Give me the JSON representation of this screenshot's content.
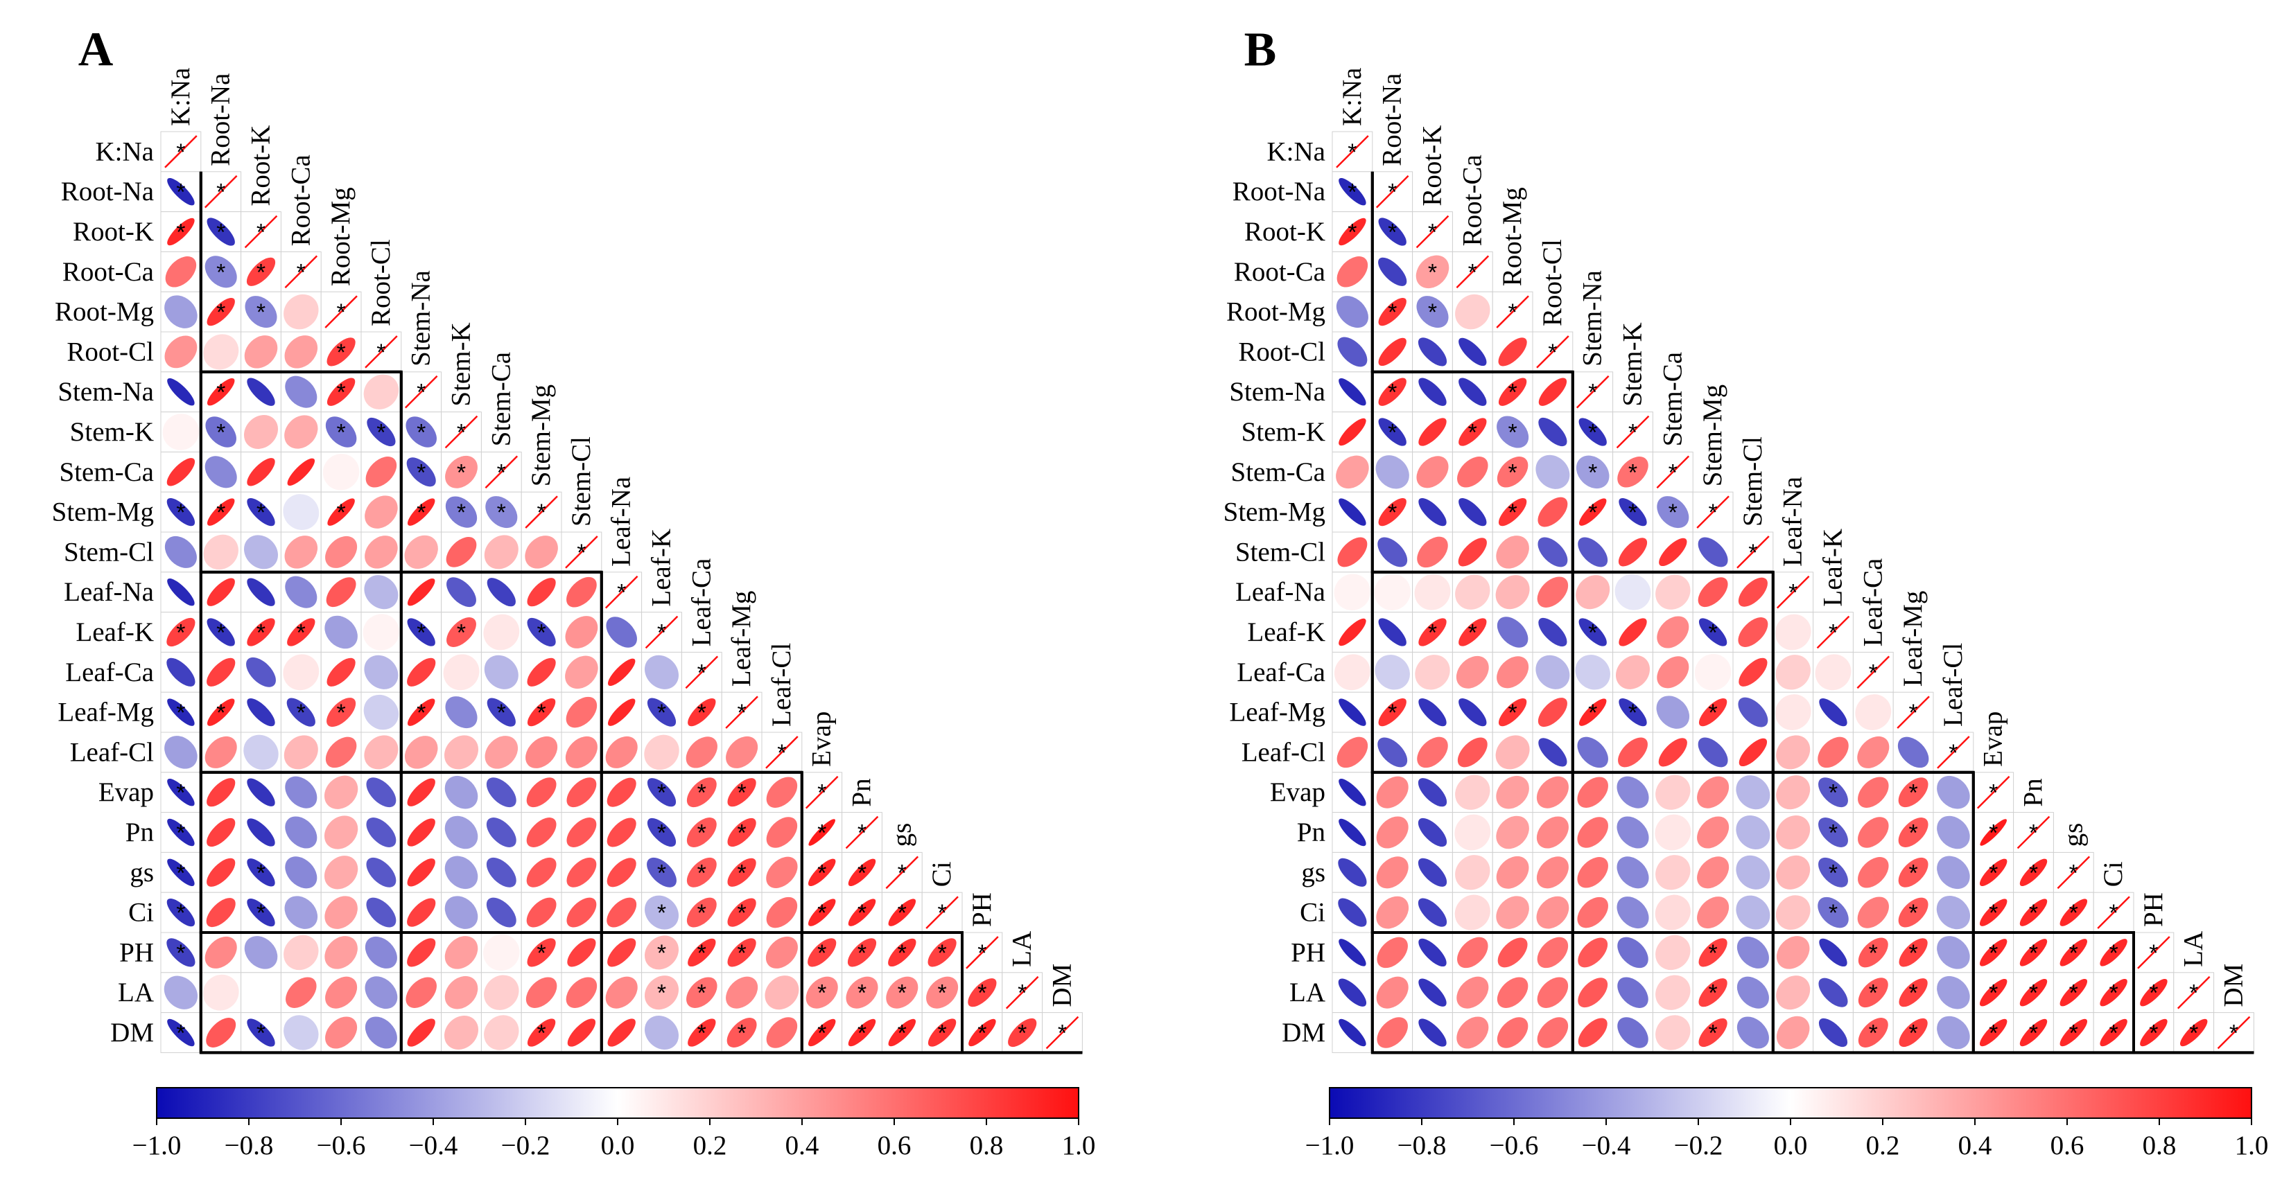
{
  "chart_data": [
    {
      "type": "heatmap",
      "panel": "A",
      "variables": [
        "K:Na",
        "Root-Na",
        "Root-K",
        "Root-Ca",
        "Root-Mg",
        "Root-Cl",
        "Stem-Na",
        "Stem-K",
        "Stem-Ca",
        "Stem-Mg",
        "Stem-Cl",
        "Leaf-Na",
        "Leaf-K",
        "Leaf-Ca",
        "Leaf-Mg",
        "Leaf-Cl",
        "Evap",
        "Pn",
        "gs",
        "Ci",
        "PH",
        "LA",
        "DM"
      ],
      "groups": [
        [
          1,
          5
        ],
        [
          6,
          10
        ],
        [
          11,
          15
        ],
        [
          16,
          19
        ],
        [
          20,
          22
        ]
      ],
      "colorbar": {
        "range": [
          -1.0,
          1.0
        ],
        "ticks": [
          "−1.0",
          "−0.8",
          "−0.6",
          "−0.4",
          "−0.2",
          "0.0",
          "0.2",
          "0.4",
          "0.6",
          "0.8",
          "1.0"
        ],
        "low_color": "#1010b0",
        "mid_color": "#ffffff",
        "high_color": "#ff1010"
      },
      "rows": [
        [
          1.0
        ],
        [
          -0.9,
          1.0
        ],
        [
          0.9,
          -0.85,
          1.0
        ],
        [
          0.6,
          -0.5,
          0.8,
          1.0
        ],
        [
          -0.4,
          0.85,
          -0.5,
          0.2,
          1.0
        ],
        [
          0.45,
          0.15,
          0.4,
          0.4,
          0.8,
          1.0
        ],
        [
          -0.9,
          0.9,
          -0.85,
          -0.5,
          0.85,
          0.2,
          1.0
        ],
        [
          0.05,
          -0.6,
          0.3,
          0.35,
          -0.6,
          -0.8,
          -0.6,
          1.0
        ],
        [
          0.85,
          -0.5,
          0.85,
          0.9,
          0.05,
          0.6,
          -0.75,
          0.45,
          1.0
        ],
        [
          -0.85,
          0.9,
          -0.85,
          -0.1,
          0.9,
          0.4,
          0.9,
          -0.55,
          -0.5,
          1.0
        ],
        [
          -0.5,
          0.2,
          -0.3,
          0.4,
          0.5,
          0.4,
          0.35,
          0.65,
          0.3,
          0.4,
          1.0
        ],
        [
          -0.9,
          0.85,
          -0.85,
          -0.5,
          0.7,
          -0.3,
          0.9,
          -0.7,
          -0.8,
          0.8,
          0.65,
          1.0
        ],
        [
          0.8,
          -0.85,
          0.85,
          0.85,
          -0.4,
          0.05,
          -0.85,
          0.7,
          0.1,
          -0.8,
          0.45,
          -0.6,
          1.0
        ],
        [
          -0.8,
          0.8,
          -0.7,
          0.1,
          0.8,
          -0.3,
          0.8,
          0.1,
          -0.3,
          0.8,
          0.4,
          0.9,
          -0.3,
          1.0
        ],
        [
          -0.9,
          0.9,
          -0.85,
          -0.8,
          0.75,
          -0.2,
          0.9,
          -0.5,
          -0.8,
          0.85,
          0.6,
          0.9,
          -0.8,
          0.85,
          1.0
        ],
        [
          -0.4,
          0.5,
          -0.2,
          0.3,
          0.6,
          0.3,
          0.4,
          0.3,
          0.4,
          0.5,
          0.5,
          0.5,
          0.2,
          0.55,
          0.5,
          1.0
        ],
        [
          -0.9,
          0.8,
          -0.85,
          -0.5,
          0.35,
          -0.7,
          0.85,
          -0.4,
          -0.7,
          0.7,
          0.7,
          0.75,
          -0.8,
          0.7,
          0.8,
          0.6,
          1.0
        ],
        [
          -0.9,
          0.8,
          -0.85,
          -0.5,
          0.35,
          -0.7,
          0.85,
          -0.4,
          -0.7,
          0.7,
          0.7,
          0.75,
          -0.8,
          0.7,
          0.8,
          0.6,
          0.95,
          1.0
        ],
        [
          -0.9,
          0.8,
          -0.85,
          -0.5,
          0.35,
          -0.7,
          0.85,
          -0.4,
          -0.7,
          0.7,
          0.7,
          0.75,
          -0.7,
          0.7,
          0.8,
          0.55,
          0.9,
          0.9,
          1.0
        ],
        [
          -0.85,
          0.75,
          -0.85,
          -0.4,
          0.4,
          -0.7,
          0.8,
          -0.4,
          -0.7,
          0.7,
          0.7,
          0.7,
          -0.3,
          0.7,
          0.8,
          0.6,
          0.9,
          0.9,
          0.9,
          1.0
        ],
        [
          -0.8,
          0.5,
          -0.4,
          0.2,
          0.4,
          -0.5,
          0.8,
          0.4,
          0.05,
          0.8,
          0.8,
          0.8,
          0.3,
          0.85,
          0.8,
          0.5,
          0.8,
          0.8,
          0.85,
          0.8,
          1.0
        ],
        [
          -0.35,
          0.1,
          0.0,
          0.6,
          0.5,
          -0.45,
          0.6,
          0.4,
          0.2,
          0.6,
          0.6,
          0.5,
          0.3,
          0.6,
          0.5,
          0.3,
          0.5,
          0.5,
          0.5,
          0.5,
          0.8,
          1.0
        ],
        [
          -0.9,
          0.7,
          -0.85,
          -0.2,
          0.5,
          -0.5,
          0.85,
          0.3,
          0.2,
          0.85,
          0.85,
          0.85,
          -0.3,
          0.85,
          0.7,
          0.6,
          0.9,
          0.9,
          0.9,
          0.85,
          0.9,
          0.8,
          1.0
        ]
      ],
      "significant": [
        [
          0
        ],
        [
          0,
          1
        ],
        [
          0,
          1,
          2
        ],
        [
          1,
          2,
          3
        ],
        [
          1,
          2,
          4
        ],
        [
          4,
          5
        ],
        [
          1,
          4,
          6
        ],
        [
          1,
          4,
          5,
          6,
          7
        ],
        [
          6,
          7,
          8
        ],
        [
          0,
          1,
          2,
          4,
          6,
          7,
          8,
          9
        ],
        [
          10
        ],
        [
          11
        ],
        [
          0,
          1,
          2,
          3,
          6,
          7,
          9,
          12
        ],
        [
          13
        ],
        [
          0,
          1,
          3,
          4,
          6,
          8,
          9,
          12,
          13,
          14
        ],
        [
          15
        ],
        [
          0,
          12,
          13,
          14,
          16
        ],
        [
          0,
          12,
          13,
          14,
          16,
          17
        ],
        [
          0,
          2,
          12,
          13,
          14,
          16,
          17,
          18
        ],
        [
          0,
          2,
          12,
          13,
          14,
          16,
          17,
          18,
          19
        ],
        [
          0,
          9,
          12,
          13,
          14,
          16,
          17,
          18,
          19,
          20
        ],
        [
          12,
          13,
          16,
          17,
          18,
          19,
          20,
          21
        ],
        [
          0,
          2,
          9,
          13,
          14,
          16,
          17,
          18,
          19,
          20,
          21,
          22
        ]
      ]
    },
    {
      "type": "heatmap",
      "panel": "B",
      "variables": [
        "K:Na",
        "Root-Na",
        "Root-K",
        "Root-Ca",
        "Root-Mg",
        "Root-Cl",
        "Stem-Na",
        "Stem-K",
        "Stem-Ca",
        "Stem-Mg",
        "Stem-Cl",
        "Leaf-Na",
        "Leaf-K",
        "Leaf-Ca",
        "Leaf-Mg",
        "Leaf-Cl",
        "Evap",
        "Pn",
        "gs",
        "Ci",
        "PH",
        "LA",
        "DM"
      ],
      "groups": [
        [
          1,
          5
        ],
        [
          6,
          10
        ],
        [
          11,
          15
        ],
        [
          16,
          19
        ],
        [
          20,
          22
        ]
      ],
      "colorbar": {
        "range": [
          -1.0,
          1.0
        ],
        "ticks": [
          "−1.0",
          "−0.8",
          "−0.6",
          "−0.4",
          "−0.2",
          "0.0",
          "0.2",
          "0.4",
          "0.6",
          "0.8",
          "1.0"
        ],
        "low_color": "#1010b0",
        "mid_color": "#ffffff",
        "high_color": "#ff1010"
      },
      "rows": [
        [
          1.0
        ],
        [
          -0.9,
          1.0
        ],
        [
          0.9,
          -0.85,
          1.0
        ],
        [
          0.6,
          -0.8,
          0.4,
          1.0
        ],
        [
          -0.5,
          0.85,
          -0.5,
          0.2,
          1.0
        ],
        [
          -0.7,
          0.85,
          -0.8,
          -0.85,
          0.8,
          1.0
        ],
        [
          -0.9,
          0.85,
          -0.85,
          -0.85,
          0.85,
          0.85,
          1.0
        ],
        [
          0.9,
          -0.85,
          0.85,
          0.85,
          -0.5,
          -0.8,
          -0.85,
          1.0
        ],
        [
          0.4,
          -0.35,
          0.5,
          0.6,
          0.6,
          -0.3,
          -0.4,
          0.6,
          1.0
        ],
        [
          -0.9,
          0.85,
          -0.85,
          -0.85,
          0.85,
          0.7,
          0.9,
          -0.85,
          -0.5,
          1.0
        ],
        [
          0.7,
          -0.7,
          0.6,
          0.8,
          0.4,
          -0.7,
          -0.7,
          0.8,
          0.85,
          -0.7,
          1.0
        ],
        [
          0.05,
          0.05,
          0.1,
          0.2,
          0.3,
          0.6,
          0.3,
          -0.1,
          0.2,
          0.7,
          0.75,
          1.0
        ],
        [
          0.9,
          -0.85,
          0.85,
          0.85,
          -0.6,
          -0.8,
          -0.85,
          0.85,
          0.5,
          -0.85,
          0.7,
          0.1,
          1.0
        ],
        [
          0.1,
          -0.2,
          0.2,
          0.45,
          0.5,
          -0.3,
          -0.2,
          0.3,
          0.5,
          0.05,
          0.8,
          0.2,
          0.1,
          1.0
        ],
        [
          -0.9,
          0.85,
          -0.85,
          -0.85,
          0.85,
          0.75,
          0.9,
          -0.85,
          -0.4,
          0.85,
          -0.7,
          0.1,
          -0.85,
          0.1,
          1.0
        ],
        [
          0.6,
          -0.7,
          0.6,
          0.7,
          0.3,
          -0.8,
          -0.6,
          0.7,
          0.8,
          -0.7,
          0.85,
          0.3,
          0.6,
          0.5,
          -0.6,
          1.0
        ],
        [
          -0.9,
          0.5,
          -0.8,
          0.2,
          0.4,
          0.5,
          0.6,
          -0.5,
          0.2,
          0.5,
          -0.3,
          0.3,
          -0.7,
          0.6,
          0.7,
          -0.4,
          1.0
        ],
        [
          -0.9,
          0.5,
          -0.8,
          0.1,
          0.4,
          0.5,
          0.6,
          -0.5,
          0.1,
          0.5,
          -0.3,
          0.3,
          -0.7,
          0.6,
          0.7,
          -0.4,
          0.95,
          1.0
        ],
        [
          -0.8,
          0.5,
          -0.8,
          0.2,
          0.45,
          0.5,
          0.6,
          -0.5,
          0.2,
          0.5,
          -0.3,
          0.3,
          -0.7,
          0.6,
          0.7,
          -0.4,
          0.9,
          0.9,
          1.0
        ],
        [
          -0.8,
          0.45,
          -0.8,
          0.15,
          0.4,
          0.45,
          0.6,
          -0.5,
          0.15,
          0.5,
          -0.3,
          0.25,
          -0.6,
          0.55,
          0.7,
          -0.35,
          0.9,
          0.9,
          0.9,
          1.0
        ],
        [
          -0.9,
          0.6,
          -0.85,
          0.6,
          0.7,
          0.6,
          0.7,
          -0.6,
          0.2,
          0.8,
          -0.5,
          0.4,
          -0.85,
          0.7,
          0.8,
          -0.4,
          0.9,
          0.9,
          0.9,
          0.9,
          1.0
        ],
        [
          -0.85,
          0.5,
          -0.85,
          0.5,
          0.6,
          0.6,
          0.7,
          -0.6,
          0.2,
          0.8,
          -0.5,
          0.3,
          -0.75,
          0.7,
          0.8,
          -0.4,
          0.9,
          0.9,
          0.9,
          0.9,
          0.9,
          1.0
        ],
        [
          -0.9,
          0.6,
          -0.85,
          0.5,
          0.6,
          0.6,
          0.75,
          -0.6,
          0.2,
          0.8,
          -0.5,
          0.4,
          -0.8,
          0.7,
          0.8,
          -0.4,
          0.9,
          0.9,
          0.9,
          0.9,
          0.9,
          0.9,
          1.0
        ]
      ],
      "significant": [
        [
          0
        ],
        [
          0,
          1
        ],
        [
          0,
          1,
          2
        ],
        [
          2,
          3
        ],
        [
          1,
          2,
          4
        ],
        [
          5
        ],
        [
          1,
          4,
          6
        ],
        [
          1,
          3,
          4,
          6,
          7
        ],
        [
          4,
          6,
          7,
          8
        ],
        [
          1,
          4,
          6,
          7,
          8,
          9
        ],
        [
          10
        ],
        [
          11
        ],
        [
          2,
          3,
          6,
          9,
          12
        ],
        [
          13
        ],
        [
          1,
          4,
          6,
          7,
          9,
          14
        ],
        [
          15
        ],
        [
          12,
          14,
          16
        ],
        [
          12,
          14,
          16,
          17
        ],
        [
          12,
          14,
          16,
          17,
          18
        ],
        [
          12,
          14,
          16,
          17,
          18,
          19
        ],
        [
          9,
          13,
          14,
          16,
          17,
          18,
          19,
          20
        ],
        [
          9,
          13,
          14,
          16,
          17,
          18,
          19,
          20,
          21
        ],
        [
          9,
          13,
          14,
          16,
          17,
          18,
          19,
          20,
          21,
          22
        ]
      ]
    }
  ]
}
